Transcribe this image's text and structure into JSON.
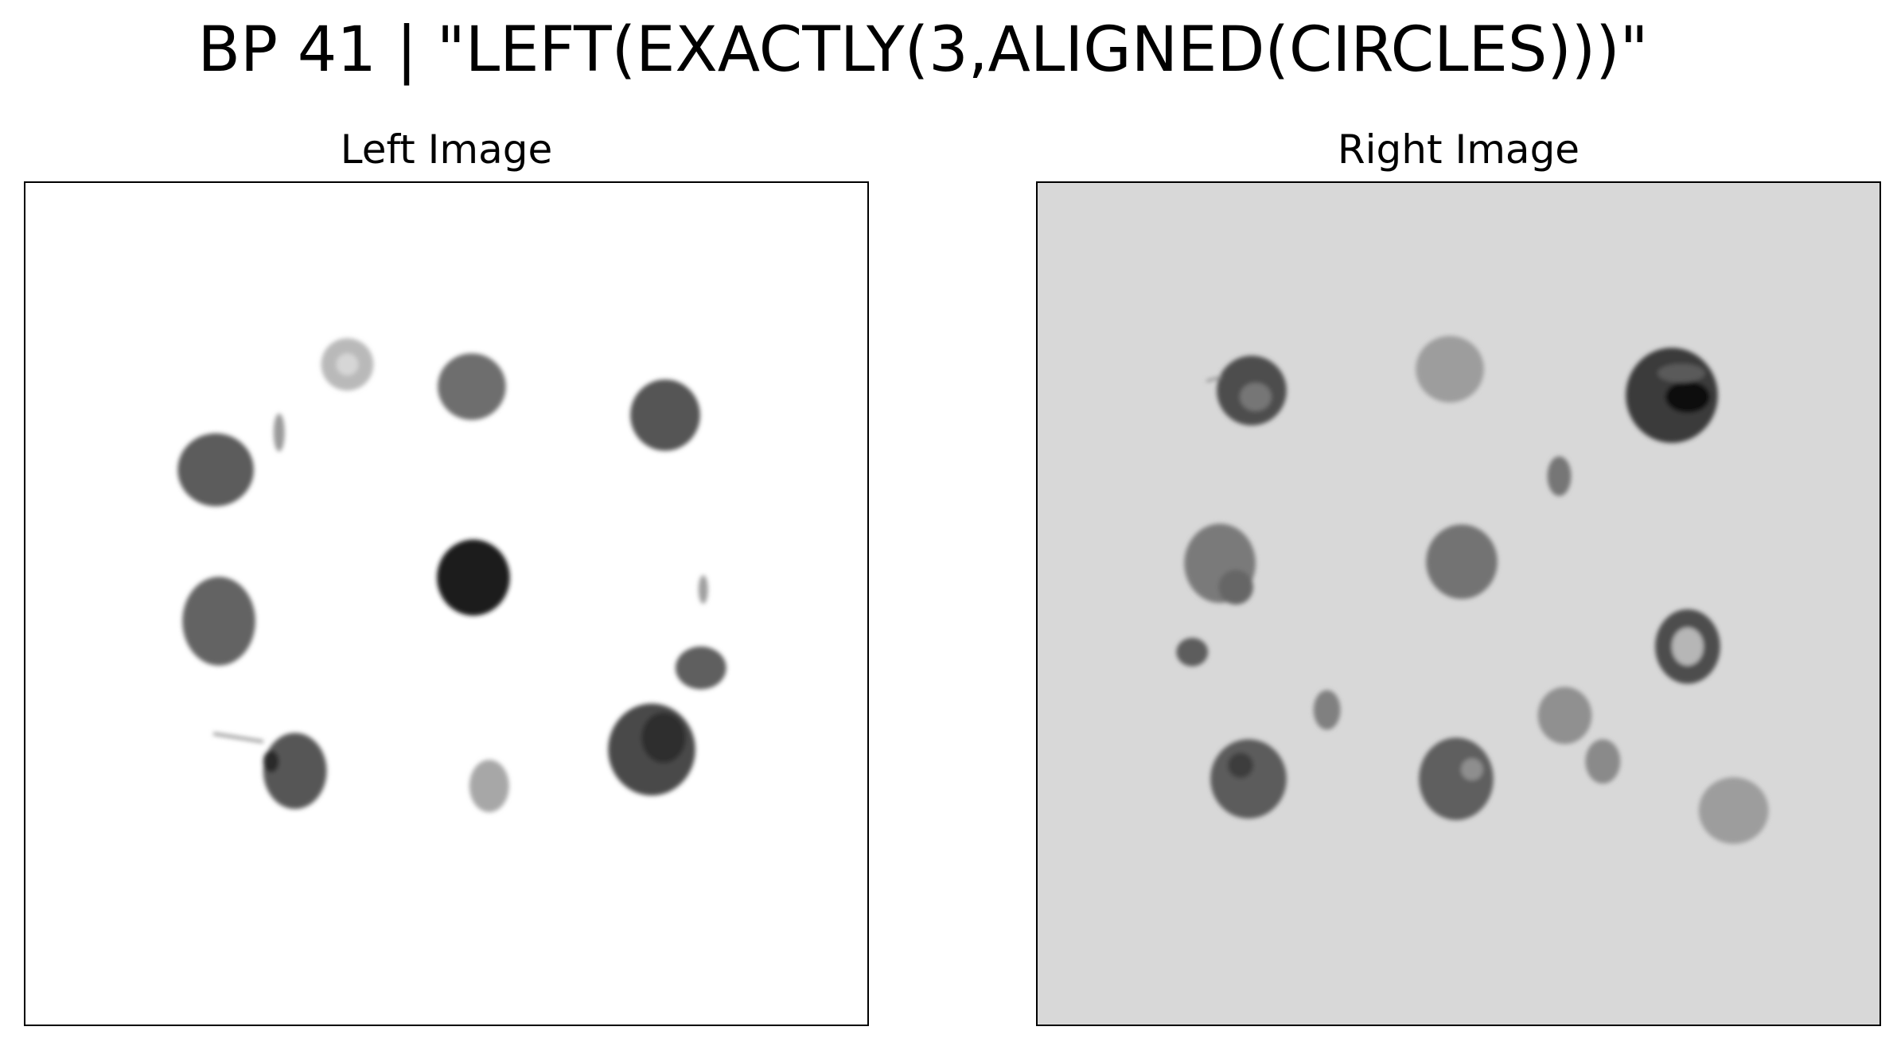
{
  "figure": {
    "title": "BP 41 | \"LEFT(EXACTLY(3,ALIGNED(CIRCLES)))\""
  },
  "panels": {
    "left": {
      "title": "Left Image",
      "background": "#ffffff"
    },
    "right": {
      "title": "Right Image",
      "background": "#d8d8d8"
    }
  }
}
